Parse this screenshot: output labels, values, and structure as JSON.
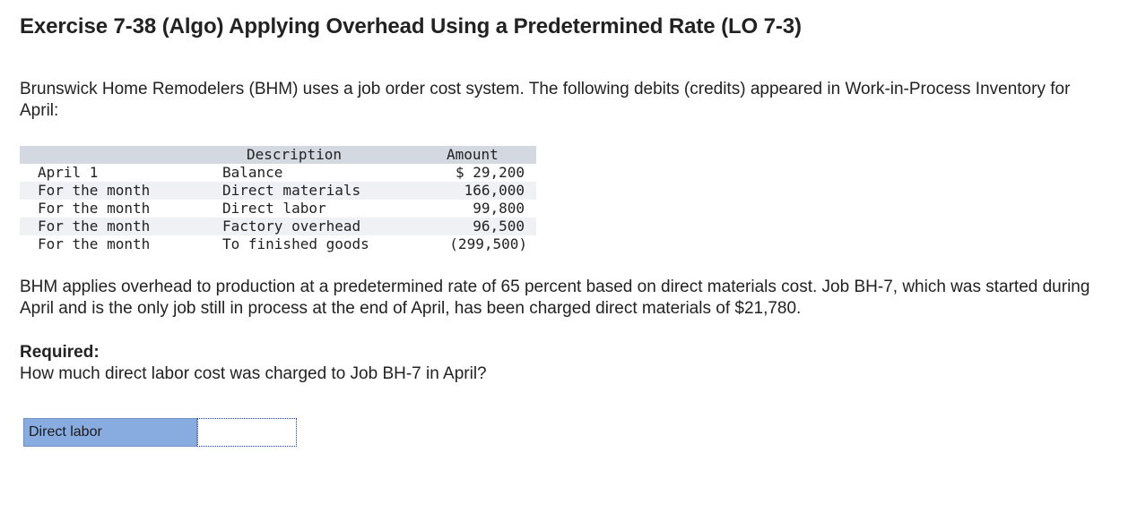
{
  "title": "Exercise 7-38 (Algo) Applying Overhead Using a Predetermined Rate (LO 7-3)",
  "intro": "Brunswick Home Remodelers (BHM) uses a job order cost system. The following debits (credits) appeared in Work-in-Process Inventory for April:",
  "ledger": {
    "headers": {
      "description": "Description",
      "amount": "Amount"
    },
    "rows": [
      {
        "date": "April 1",
        "description": "Balance",
        "amount": "$ 29,200"
      },
      {
        "date": "For the month",
        "description": "Direct materials",
        "amount": "166,000"
      },
      {
        "date": "For the month",
        "description": "Direct labor",
        "amount": "99,800"
      },
      {
        "date": "For the month",
        "description": "Factory overhead",
        "amount": "96,500"
      },
      {
        "date": "For the month",
        "description": "To finished goods",
        "amount": "(299,500)"
      }
    ]
  },
  "details": "BHM applies overhead to production at a predetermined rate of 65 percent based on direct materials cost. Job BH-7, which was started during April and is the only job still in process at the end of April, has been charged direct materials of $21,780.",
  "required": {
    "heading": "Required:",
    "question": "How much direct labor cost was charged to Job BH-7 in April?"
  },
  "answer": {
    "label": "Direct labor",
    "value": ""
  },
  "colors": {
    "table_header_bg": "#d4d8e1",
    "answer_label_bg": "#89ace0",
    "input_border": "#2b3c8f"
  }
}
